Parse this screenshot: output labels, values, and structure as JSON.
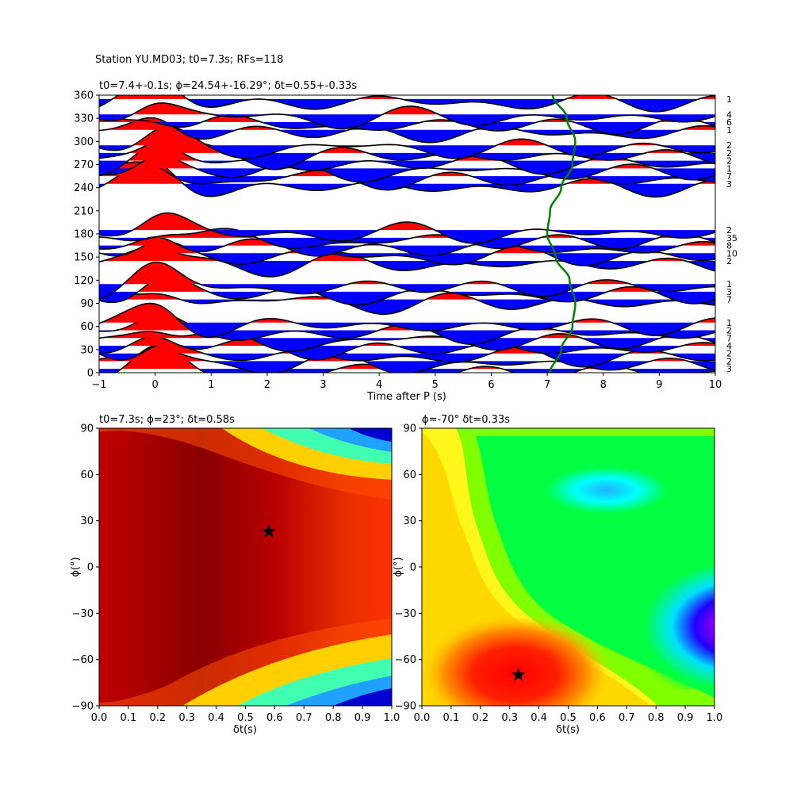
{
  "figure": {
    "suptitle": "Station YU.MD03; t0=7.3s; RFs=118"
  },
  "chart_data": [
    {
      "type": "line",
      "panel": "receiver-functions",
      "title": "t0=7.4+-0.1s; ϕ=24.54+-16.29°; δt=0.55+-0.33s",
      "xlabel": "Time after P (s)",
      "ylabel": "",
      "xlim": [
        -1,
        10
      ],
      "ylim": [
        0,
        360
      ],
      "xticks": [
        "−1",
        "0",
        "1",
        "2",
        "3",
        "4",
        "5",
        "6",
        "7",
        "8",
        "9",
        "10"
      ],
      "yticks": [
        "0",
        "30",
        "60",
        "90",
        "120",
        "150",
        "180",
        "210",
        "240",
        "270",
        "300",
        "330",
        "360"
      ],
      "fill_colors": {
        "positive": "#ff0000",
        "negative": "#0000ff"
      },
      "moveout_color": "#008000",
      "moveout_curve": {
        "baz": [
          0,
          30,
          60,
          90,
          120,
          150,
          180,
          210,
          240,
          270,
          300,
          330,
          360
        ],
        "t": [
          7.05,
          7.25,
          7.45,
          7.5,
          7.4,
          7.15,
          7.0,
          7.05,
          7.25,
          7.45,
          7.5,
          7.35,
          7.1
        ]
      },
      "traces": [
        {
          "baz": 5,
          "count": "3"
        },
        {
          "baz": 15,
          "count": "2"
        },
        {
          "baz": 25,
          "count": "2"
        },
        {
          "baz": 35,
          "count": "4"
        },
        {
          "baz": 45,
          "count": "7"
        },
        {
          "baz": 55,
          "count": "2"
        },
        {
          "baz": 65,
          "count": "1"
        },
        {
          "baz": 95,
          "count": "7"
        },
        {
          "baz": 105,
          "count": "3"
        },
        {
          "baz": 115,
          "count": "1"
        },
        {
          "baz": 145,
          "count": "2"
        },
        {
          "baz": 155,
          "count": "10"
        },
        {
          "baz": 165,
          "count": "8"
        },
        {
          "baz": 175,
          "count": "35"
        },
        {
          "baz": 185,
          "count": "2"
        },
        {
          "baz": 245,
          "count": "3"
        },
        {
          "baz": 255,
          "count": "7"
        },
        {
          "baz": 265,
          "count": "1"
        },
        {
          "baz": 275,
          "count": "2"
        },
        {
          "baz": 285,
          "count": "2"
        },
        {
          "baz": 295,
          "count": "2"
        },
        {
          "baz": 315,
          "count": "1"
        },
        {
          "baz": 325,
          "count": "6"
        },
        {
          "baz": 335,
          "count": "4"
        },
        {
          "baz": 355,
          "count": "1"
        }
      ]
    },
    {
      "type": "heatmap",
      "panel": "splitting-energy-left",
      "title": "t0=7.3s; ϕ=23°; δt=0.58s",
      "xlabel": "δt(s)",
      "ylabel": "ϕ(°)",
      "xlim": [
        0.0,
        1.0
      ],
      "ylim": [
        -90,
        90
      ],
      "xticks": [
        "0.0",
        "0.1",
        "0.2",
        "0.3",
        "0.4",
        "0.5",
        "0.6",
        "0.7",
        "0.8",
        "0.9",
        "1.0"
      ],
      "yticks": [
        "−90",
        "−60",
        "−30",
        "0",
        "30",
        "60",
        "90"
      ],
      "colormap": "jet",
      "best": {
        "dt": 0.58,
        "phi": 23
      }
    },
    {
      "type": "heatmap",
      "panel": "splitting-energy-right",
      "title": "ϕ=-70° δt=0.33s",
      "xlabel": "δt(s)",
      "ylabel": "ϕ(°)",
      "xlim": [
        0.0,
        1.0
      ],
      "ylim": [
        -90,
        90
      ],
      "xticks": [
        "0.0",
        "0.1",
        "0.2",
        "0.3",
        "0.4",
        "0.5",
        "0.6",
        "0.7",
        "0.8",
        "0.9",
        "1.0"
      ],
      "yticks": [
        "−90",
        "−60",
        "−30",
        "0",
        "30",
        "60",
        "90"
      ],
      "colormap": "hsv",
      "best": {
        "dt": 0.33,
        "phi": -70
      }
    }
  ]
}
